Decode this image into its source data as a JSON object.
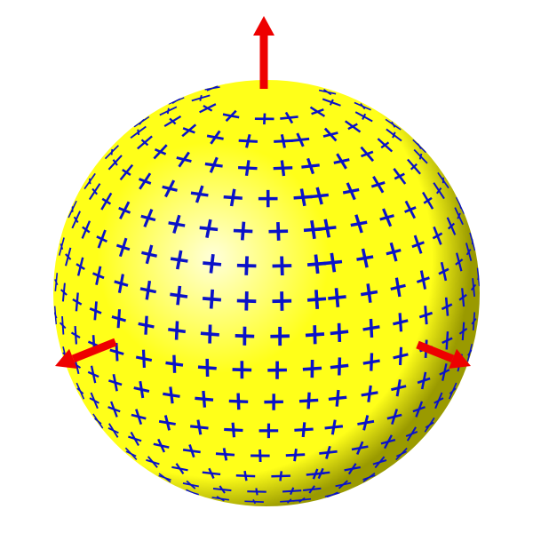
{
  "figure": {
    "kind": "sphere-surface-frame-field",
    "sphere_color": "#ffff19",
    "sphere_highlight": "#ffffd9",
    "sphere_shadow": "#9a9a00",
    "mark_color": "#0a12c8",
    "mark_shape": "cross",
    "arrow_color": "#ee0000",
    "arrow_count": 3,
    "arrows": [
      {
        "name": "up-axis-arrow",
        "direction": "up"
      },
      {
        "name": "left-axis-arrow",
        "direction": "lower-left"
      },
      {
        "name": "right-axis-arrow",
        "direction": "lower-right"
      }
    ]
  }
}
